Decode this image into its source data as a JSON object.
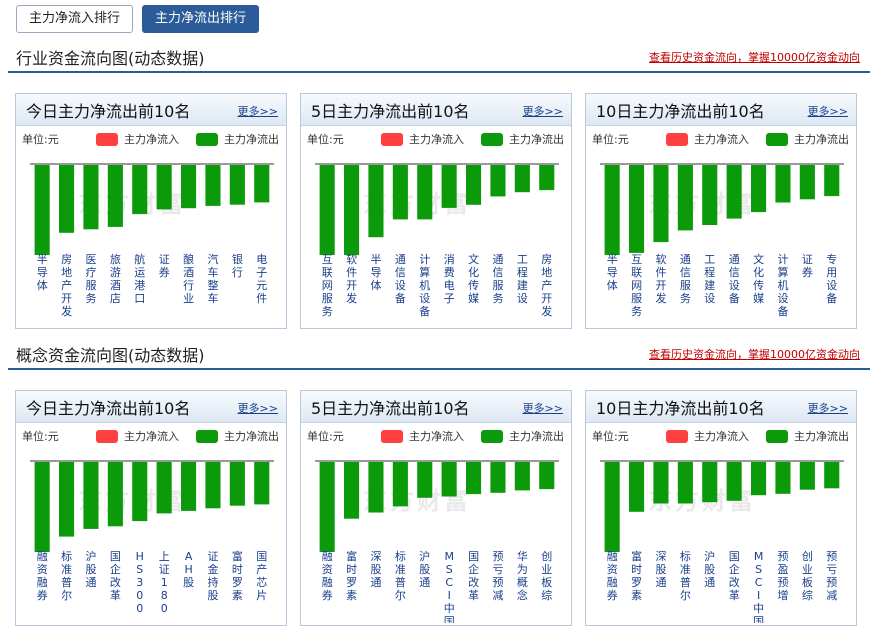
{
  "tabs": [
    {
      "label": "主力净流入排行",
      "active": false
    },
    {
      "label": "主力净流出排行",
      "active": true
    }
  ],
  "colors": {
    "inflow": "#ff4040",
    "outflow": "#0a9a0a",
    "accent": "#2b5c99"
  },
  "watermark": "东方财富",
  "sections": [
    {
      "title": "行业资金流向图(动态数据)",
      "link": "查看历史资金流向，掌握10000亿资金动向",
      "panels": [
        {
          "title": "今日主力净流出前10名",
          "more": "更多>>",
          "unit": "单位:元",
          "legend_in": "主力净流入",
          "legend_out": "主力净流出",
          "chart_data": {
            "type": "bar",
            "categories": [
              "半导体",
              "房地产开发",
              "医疗服务",
              "旅游酒店",
              "航运港口",
              "证券",
              "酿酒行业",
              "汽车整车",
              "银行",
              "电子元件"
            ],
            "values": [
              -7.7,
              -5.8,
              -5.5,
              -5.3,
              -4.2,
              -3.8,
              -3.7,
              -3.5,
              -3.4,
              -3.2
            ],
            "relative": true
          }
        },
        {
          "title": "5日主力净流出前10名",
          "more": "更多>>",
          "unit": "单位:元",
          "legend_in": "主力净流入",
          "legend_out": "主力净流出",
          "chart_data": {
            "type": "bar",
            "categories": [
              "互联网服务",
              "软件开发",
              "半导体",
              "通信设备",
              "计算机设备",
              "消费电子",
              "文化传媒",
              "通信服务",
              "工程建设",
              "房地产开发"
            ],
            "values": [
              -8.6,
              -8.6,
              -6.9,
              -5.2,
              -5.2,
              -4.1,
              -3.8,
              -3.0,
              -2.6,
              -2.4
            ],
            "relative": true
          }
        },
        {
          "title": "10日主力净流出前10名",
          "more": "更多>>",
          "unit": "单位:元",
          "legend_in": "主力净流入",
          "legend_out": "主力净流出",
          "chart_data": {
            "type": "bar",
            "categories": [
              "半导体",
              "互联网服务",
              "软件开发",
              "通信服务",
              "工程建设",
              "通信设备",
              "文化传媒",
              "计算机设备",
              "证券",
              "专用设备"
            ],
            "values": [
              -8.4,
              -8.2,
              -7.2,
              -6.1,
              -5.6,
              -5.0,
              -4.4,
              -3.5,
              -3.2,
              -2.9
            ],
            "relative": true
          }
        }
      ]
    },
    {
      "title": "概念资金流向图(动态数据)",
      "link": "查看历史资金流向，掌握10000亿资金动向",
      "panels": [
        {
          "title": "今日主力净流出前10名",
          "more": "更多>>",
          "unit": "单位:元",
          "legend_in": "主力净流入",
          "legend_out": "主力净流出",
          "chart_data": {
            "type": "bar",
            "categories": [
              "融资融券",
              "标准普尔",
              "沪股通",
              "国企改革",
              "HS300_",
              "上证180_",
              "AH股",
              "证金持股",
              "富时罗素",
              "国产芯片"
            ],
            "values": [
              -7.0,
              -5.8,
              -5.2,
              -5.0,
              -4.6,
              -4.0,
              -3.8,
              -3.6,
              -3.4,
              -3.3
            ],
            "relative": true
          }
        },
        {
          "title": "5日主力净流出前10名",
          "more": "更多>>",
          "unit": "单位:元",
          "legend_in": "主力净流入",
          "legend_out": "主力净流出",
          "chart_data": {
            "type": "bar",
            "categories": [
              "融资融券",
              "富时罗素",
              "深股通",
              "标准普尔",
              "沪股通",
              "MSCI中国",
              "国企改革",
              "预亏预减",
              "华为概念",
              "创业板综"
            ],
            "values": [
              -7.3,
              -4.6,
              -4.1,
              -3.6,
              -2.9,
              -2.8,
              -2.6,
              -2.5,
              -2.3,
              -2.2
            ],
            "relative": true
          }
        },
        {
          "title": "10日主力净流出前10名",
          "more": "更多>>",
          "unit": "单位:元",
          "legend_in": "主力净流入",
          "legend_out": "主力净流出",
          "chart_data": {
            "type": "bar",
            "categories": [
              "融资融券",
              "富时罗素",
              "深股通",
              "标准普尔",
              "沪股通",
              "国企改革",
              "MSCI中国",
              "预盈预增",
              "创业板综",
              "预亏预减"
            ],
            "values": [
              -6.5,
              -3.6,
              -3.0,
              -3.0,
              -2.9,
              -2.8,
              -2.4,
              -2.3,
              -2.0,
              -1.9
            ],
            "relative": true
          }
        }
      ]
    }
  ]
}
